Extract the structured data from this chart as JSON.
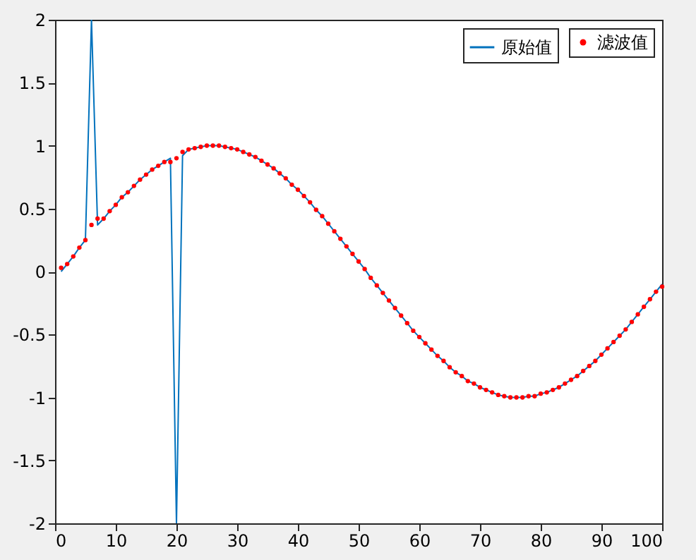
{
  "chart_data": {
    "type": "line",
    "x": [
      1,
      2,
      3,
      4,
      5,
      6,
      7,
      8,
      9,
      10,
      11,
      12,
      13,
      14,
      15,
      16,
      17,
      18,
      19,
      20,
      21,
      22,
      23,
      24,
      25,
      26,
      27,
      28,
      29,
      30,
      31,
      32,
      33,
      34,
      35,
      36,
      37,
      38,
      39,
      40,
      41,
      42,
      43,
      44,
      45,
      46,
      47,
      48,
      49,
      50,
      51,
      52,
      53,
      54,
      55,
      56,
      57,
      58,
      59,
      60,
      61,
      62,
      63,
      64,
      65,
      66,
      67,
      68,
      69,
      70,
      71,
      72,
      73,
      74,
      75,
      76,
      77,
      78,
      79,
      80,
      81,
      82,
      83,
      84,
      85,
      86,
      87,
      88,
      89,
      90,
      91,
      92,
      93,
      94,
      95,
      96,
      97,
      98,
      99,
      100
    ],
    "series": [
      {
        "name": "原始值",
        "color": "#0072bd",
        "marker": "none",
        "values": [
          0.0,
          0.06,
          0.12,
          0.19,
          0.25,
          2.0,
          0.37,
          0.42,
          0.48,
          0.53,
          0.59,
          0.63,
          0.68,
          0.73,
          0.77,
          0.81,
          0.84,
          0.87,
          0.9,
          -2.0,
          0.92,
          0.97,
          0.98,
          0.99,
          1.0,
          1.0,
          1.0,
          0.99,
          0.98,
          0.97,
          0.95,
          0.93,
          0.91,
          0.88,
          0.85,
          0.82,
          0.78,
          0.74,
          0.69,
          0.65,
          0.6,
          0.55,
          0.49,
          0.44,
          0.38,
          0.32,
          0.26,
          0.2,
          0.14,
          0.08,
          0.02,
          -0.05,
          -0.11,
          -0.17,
          -0.23,
          -0.29,
          -0.35,
          -0.41,
          -0.47,
          -0.52,
          -0.57,
          -0.62,
          -0.67,
          -0.71,
          -0.76,
          -0.8,
          -0.83,
          -0.87,
          -0.89,
          -0.92,
          -0.94,
          -0.96,
          -0.98,
          -0.99,
          -1.0,
          -1.0,
          -1.0,
          -0.99,
          -0.99,
          -0.97,
          -0.96,
          -0.94,
          -0.92,
          -0.89,
          -0.86,
          -0.83,
          -0.79,
          -0.75,
          -0.71,
          -0.66,
          -0.61,
          -0.56,
          -0.51,
          -0.46,
          -0.4,
          -0.34,
          -0.28,
          -0.22,
          -0.16,
          -0.1
        ]
      },
      {
        "name": "滤波值",
        "type": "scatter",
        "color": "#ff0000",
        "marker": "circle",
        "values": [
          0.03,
          0.06,
          0.12,
          0.19,
          0.25,
          0.37,
          0.42,
          0.42,
          0.48,
          0.53,
          0.59,
          0.63,
          0.68,
          0.73,
          0.77,
          0.81,
          0.84,
          0.87,
          0.87,
          0.9,
          0.95,
          0.97,
          0.98,
          0.99,
          1.0,
          1.0,
          1.0,
          0.99,
          0.98,
          0.97,
          0.95,
          0.93,
          0.91,
          0.88,
          0.85,
          0.82,
          0.78,
          0.74,
          0.69,
          0.65,
          0.6,
          0.55,
          0.49,
          0.44,
          0.38,
          0.32,
          0.26,
          0.2,
          0.14,
          0.08,
          0.02,
          -0.05,
          -0.11,
          -0.17,
          -0.23,
          -0.29,
          -0.35,
          -0.41,
          -0.47,
          -0.52,
          -0.57,
          -0.62,
          -0.67,
          -0.71,
          -0.76,
          -0.8,
          -0.83,
          -0.87,
          -0.89,
          -0.92,
          -0.94,
          -0.96,
          -0.98,
          -0.99,
          -1.0,
          -1.0,
          -1.0,
          -0.99,
          -0.99,
          -0.97,
          -0.96,
          -0.94,
          -0.92,
          -0.89,
          -0.86,
          -0.83,
          -0.79,
          -0.75,
          -0.71,
          -0.66,
          -0.61,
          -0.56,
          -0.51,
          -0.46,
          -0.4,
          -0.34,
          -0.28,
          -0.22,
          -0.16,
          -0.12
        ]
      }
    ],
    "xlim": [
      0,
      100
    ],
    "xticks": [
      0,
      10,
      20,
      30,
      40,
      50,
      60,
      70,
      80,
      90,
      100
    ],
    "ylim": [
      -2,
      2
    ],
    "yticks": [
      -2,
      -1.5,
      -1,
      -0.5,
      0,
      0.5,
      1,
      1.5,
      2
    ],
    "grid": false,
    "legend": "top right"
  }
}
